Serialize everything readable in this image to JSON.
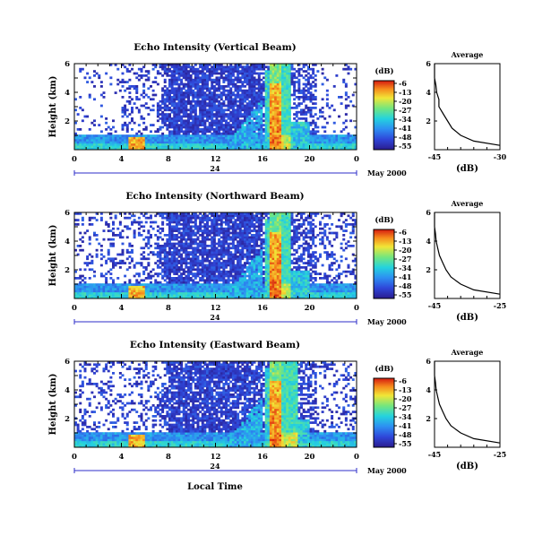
{
  "figure": {
    "panels": [
      {
        "title": "Echo Intensity (Vertical Beam)",
        "date_label": "May 2000",
        "day_label": "24",
        "avg_title": "Average",
        "avg_xticks": [
          "-45",
          "-30"
        ],
        "avg_xlabel": "(dB)"
      },
      {
        "title": "Echo Intensity (Northward Beam)",
        "date_label": "May 2000",
        "day_label": "24",
        "avg_title": "Average",
        "avg_xticks": [
          "-45",
          "-25"
        ],
        "avg_xlabel": "(dB)"
      },
      {
        "title": "Echo Intensity (Eastward Beam)",
        "date_label": "May 2000",
        "day_label": "24",
        "avg_title": "Average",
        "avg_xticks": [
          "-45",
          "-25"
        ],
        "avg_xlabel": "(dB)"
      }
    ],
    "ylabel": "Height (km)",
    "yticks": [
      "2",
      "4",
      "6"
    ],
    "xticks": [
      "0",
      "4",
      "8",
      "12",
      "16",
      "20",
      "0"
    ],
    "avg_yticks": [
      "2",
      "4",
      "6"
    ],
    "colorbar_unit": "(dB)",
    "colorbar_ticks": [
      "-6",
      "-13",
      "-20",
      "-27",
      "-34",
      "-41",
      "-48",
      "-55"
    ],
    "xlabel": "Local Time"
  },
  "chart_data": [
    {
      "type": "heatmap",
      "title": "Echo Intensity (Vertical Beam)",
      "xlabel": "Local Time",
      "ylabel": "Height (km)",
      "xlim": [
        0,
        24
      ],
      "ylim": [
        0,
        6
      ],
      "colorbar": {
        "label": "(dB)",
        "range": [
          -55,
          -6
        ]
      },
      "features": {
        "strong_echo_time_range": [
          16.5,
          18.3
        ],
        "peak_db": -6
      },
      "average_profile": {
        "xlabel": "(dB)",
        "xlim": [
          -45,
          -30
        ],
        "height_km": [
          0.3,
          0.6,
          1.0,
          1.5,
          2.0,
          2.5,
          3.0,
          3.5,
          4.0,
          4.5,
          5.0,
          5.5,
          6.0
        ],
        "db": [
          -30,
          -36,
          -39,
          -41,
          -42,
          -43,
          -44,
          -44,
          -44.5,
          -44.7,
          -45,
          -45,
          -45
        ]
      }
    },
    {
      "type": "heatmap",
      "title": "Echo Intensity (Northward Beam)",
      "xlabel": "Local Time",
      "ylabel": "Height (km)",
      "xlim": [
        0,
        24
      ],
      "ylim": [
        0,
        6
      ],
      "colorbar": {
        "label": "(dB)",
        "range": [
          -55,
          -6
        ]
      },
      "features": {
        "strong_echo_time_range": [
          16.5,
          18.3
        ],
        "peak_db": -6
      },
      "average_profile": {
        "xlabel": "(dB)",
        "xlim": [
          -45,
          -25
        ],
        "height_km": [
          0.3,
          0.6,
          1.0,
          1.5,
          2.0,
          2.5,
          3.0,
          3.5,
          4.0,
          4.5,
          5.0,
          5.5,
          6.0
        ],
        "db": [
          -25,
          -33,
          -37,
          -40,
          -41.5,
          -42.5,
          -43.5,
          -44,
          -44.5,
          -44.7,
          -45,
          -45,
          -45
        ]
      }
    },
    {
      "type": "heatmap",
      "title": "Echo Intensity (Eastward Beam)",
      "xlabel": "Local Time",
      "ylabel": "Height (km)",
      "xlim": [
        0,
        24
      ],
      "ylim": [
        0,
        6
      ],
      "colorbar": {
        "label": "(dB)",
        "range": [
          -55,
          -6
        ]
      },
      "features": {
        "strong_echo_time_range": [
          16.5,
          19.0
        ],
        "peak_db": -6
      },
      "average_profile": {
        "xlabel": "(dB)",
        "xlim": [
          -45,
          -25
        ],
        "height_km": [
          0.3,
          0.6,
          1.0,
          1.5,
          2.0,
          2.5,
          3.0,
          3.5,
          4.0,
          4.5,
          5.0,
          5.5,
          6.0
        ],
        "db": [
          -25,
          -33,
          -37,
          -40,
          -41.5,
          -42.5,
          -43.5,
          -44,
          -44.5,
          -44.7,
          -45,
          -45,
          -45
        ]
      }
    }
  ]
}
